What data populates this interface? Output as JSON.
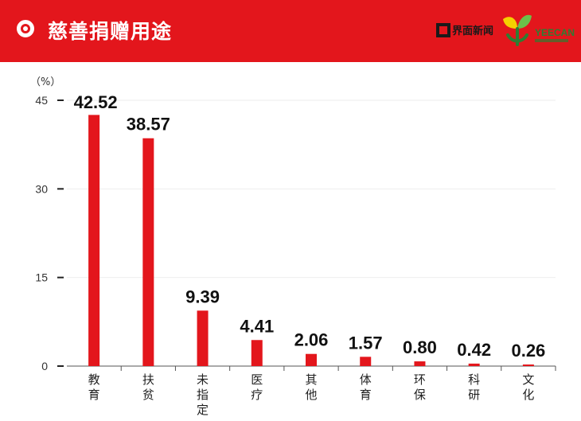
{
  "header": {
    "title": "慈善捐赠用途",
    "brand_jiemian": "界面新闻",
    "brand_yeecan": "YEECAN"
  },
  "colors": {
    "accent": "#e3161c",
    "bar": "#e3161c",
    "grid": "#eeeeee"
  },
  "icons": {
    "header": "circle-dot-icon"
  },
  "chart_data": {
    "type": "bar",
    "title": "",
    "xlabel": "",
    "ylabel": "（%）",
    "categories": [
      "教育",
      "扶贫",
      "未指定",
      "医疗",
      "其他",
      "体育",
      "环保",
      "科研",
      "文化"
    ],
    "values": [
      42.52,
      38.57,
      9.39,
      4.41,
      2.06,
      1.57,
      0.8,
      0.42,
      0.26
    ],
    "value_labels": [
      "42.52",
      "38.57",
      "9.39",
      "4.41",
      "2.06",
      "1.57",
      "0.80",
      "0.42",
      "0.26"
    ],
    "yticks": [
      0,
      15,
      30,
      45
    ],
    "ytick_labels": [
      "0",
      "15",
      "30",
      "45"
    ],
    "ylim": [
      0,
      45
    ],
    "grid": true,
    "legend": "none"
  }
}
